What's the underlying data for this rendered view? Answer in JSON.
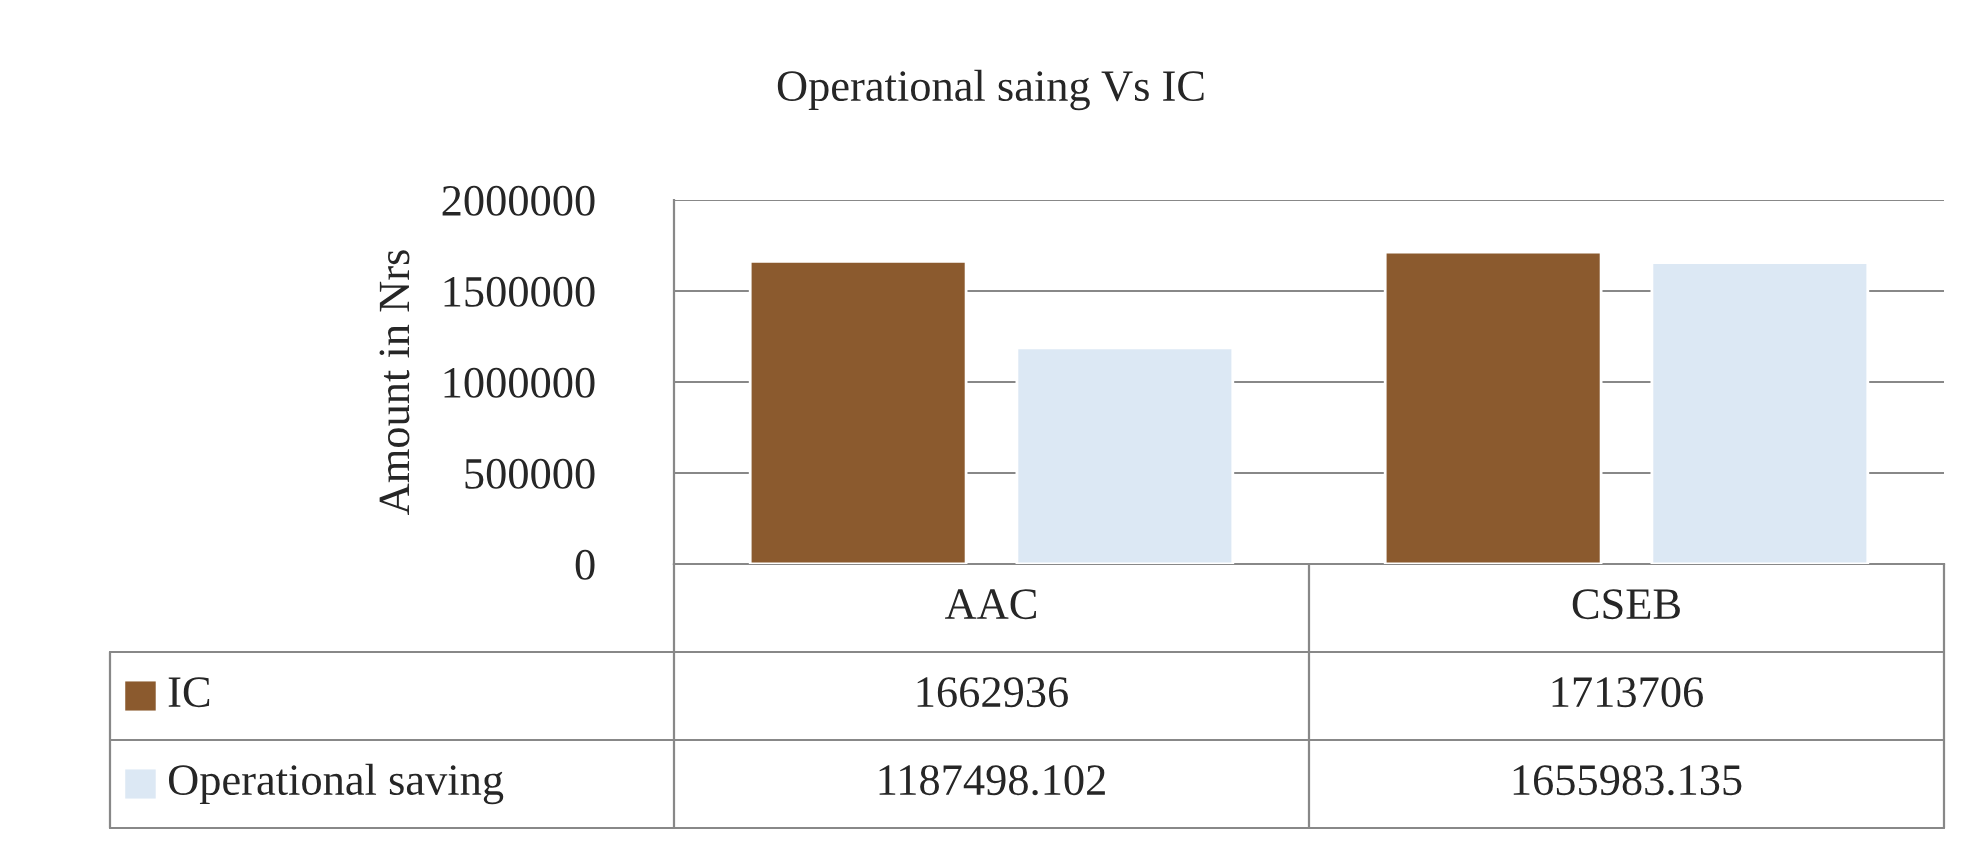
{
  "chart_data": {
    "type": "bar",
    "title": "Operational saing Vs IC",
    "ylabel": "Amount in Nrs",
    "categories": [
      "AAC",
      "CSEB"
    ],
    "series": [
      {
        "name": "IC",
        "color": "#8b5a2e",
        "values": [
          1662936,
          1713706
        ]
      },
      {
        "name": "Operational saving",
        "color": "#dce8f4",
        "values": [
          1187498.102,
          1655983.135
        ]
      }
    ],
    "ylim": [
      0,
      2000000
    ],
    "yticks": [
      0,
      500000,
      1000000,
      1500000,
      2000000
    ],
    "grid": "y",
    "data_labels": true,
    "legend": "bottom"
  }
}
